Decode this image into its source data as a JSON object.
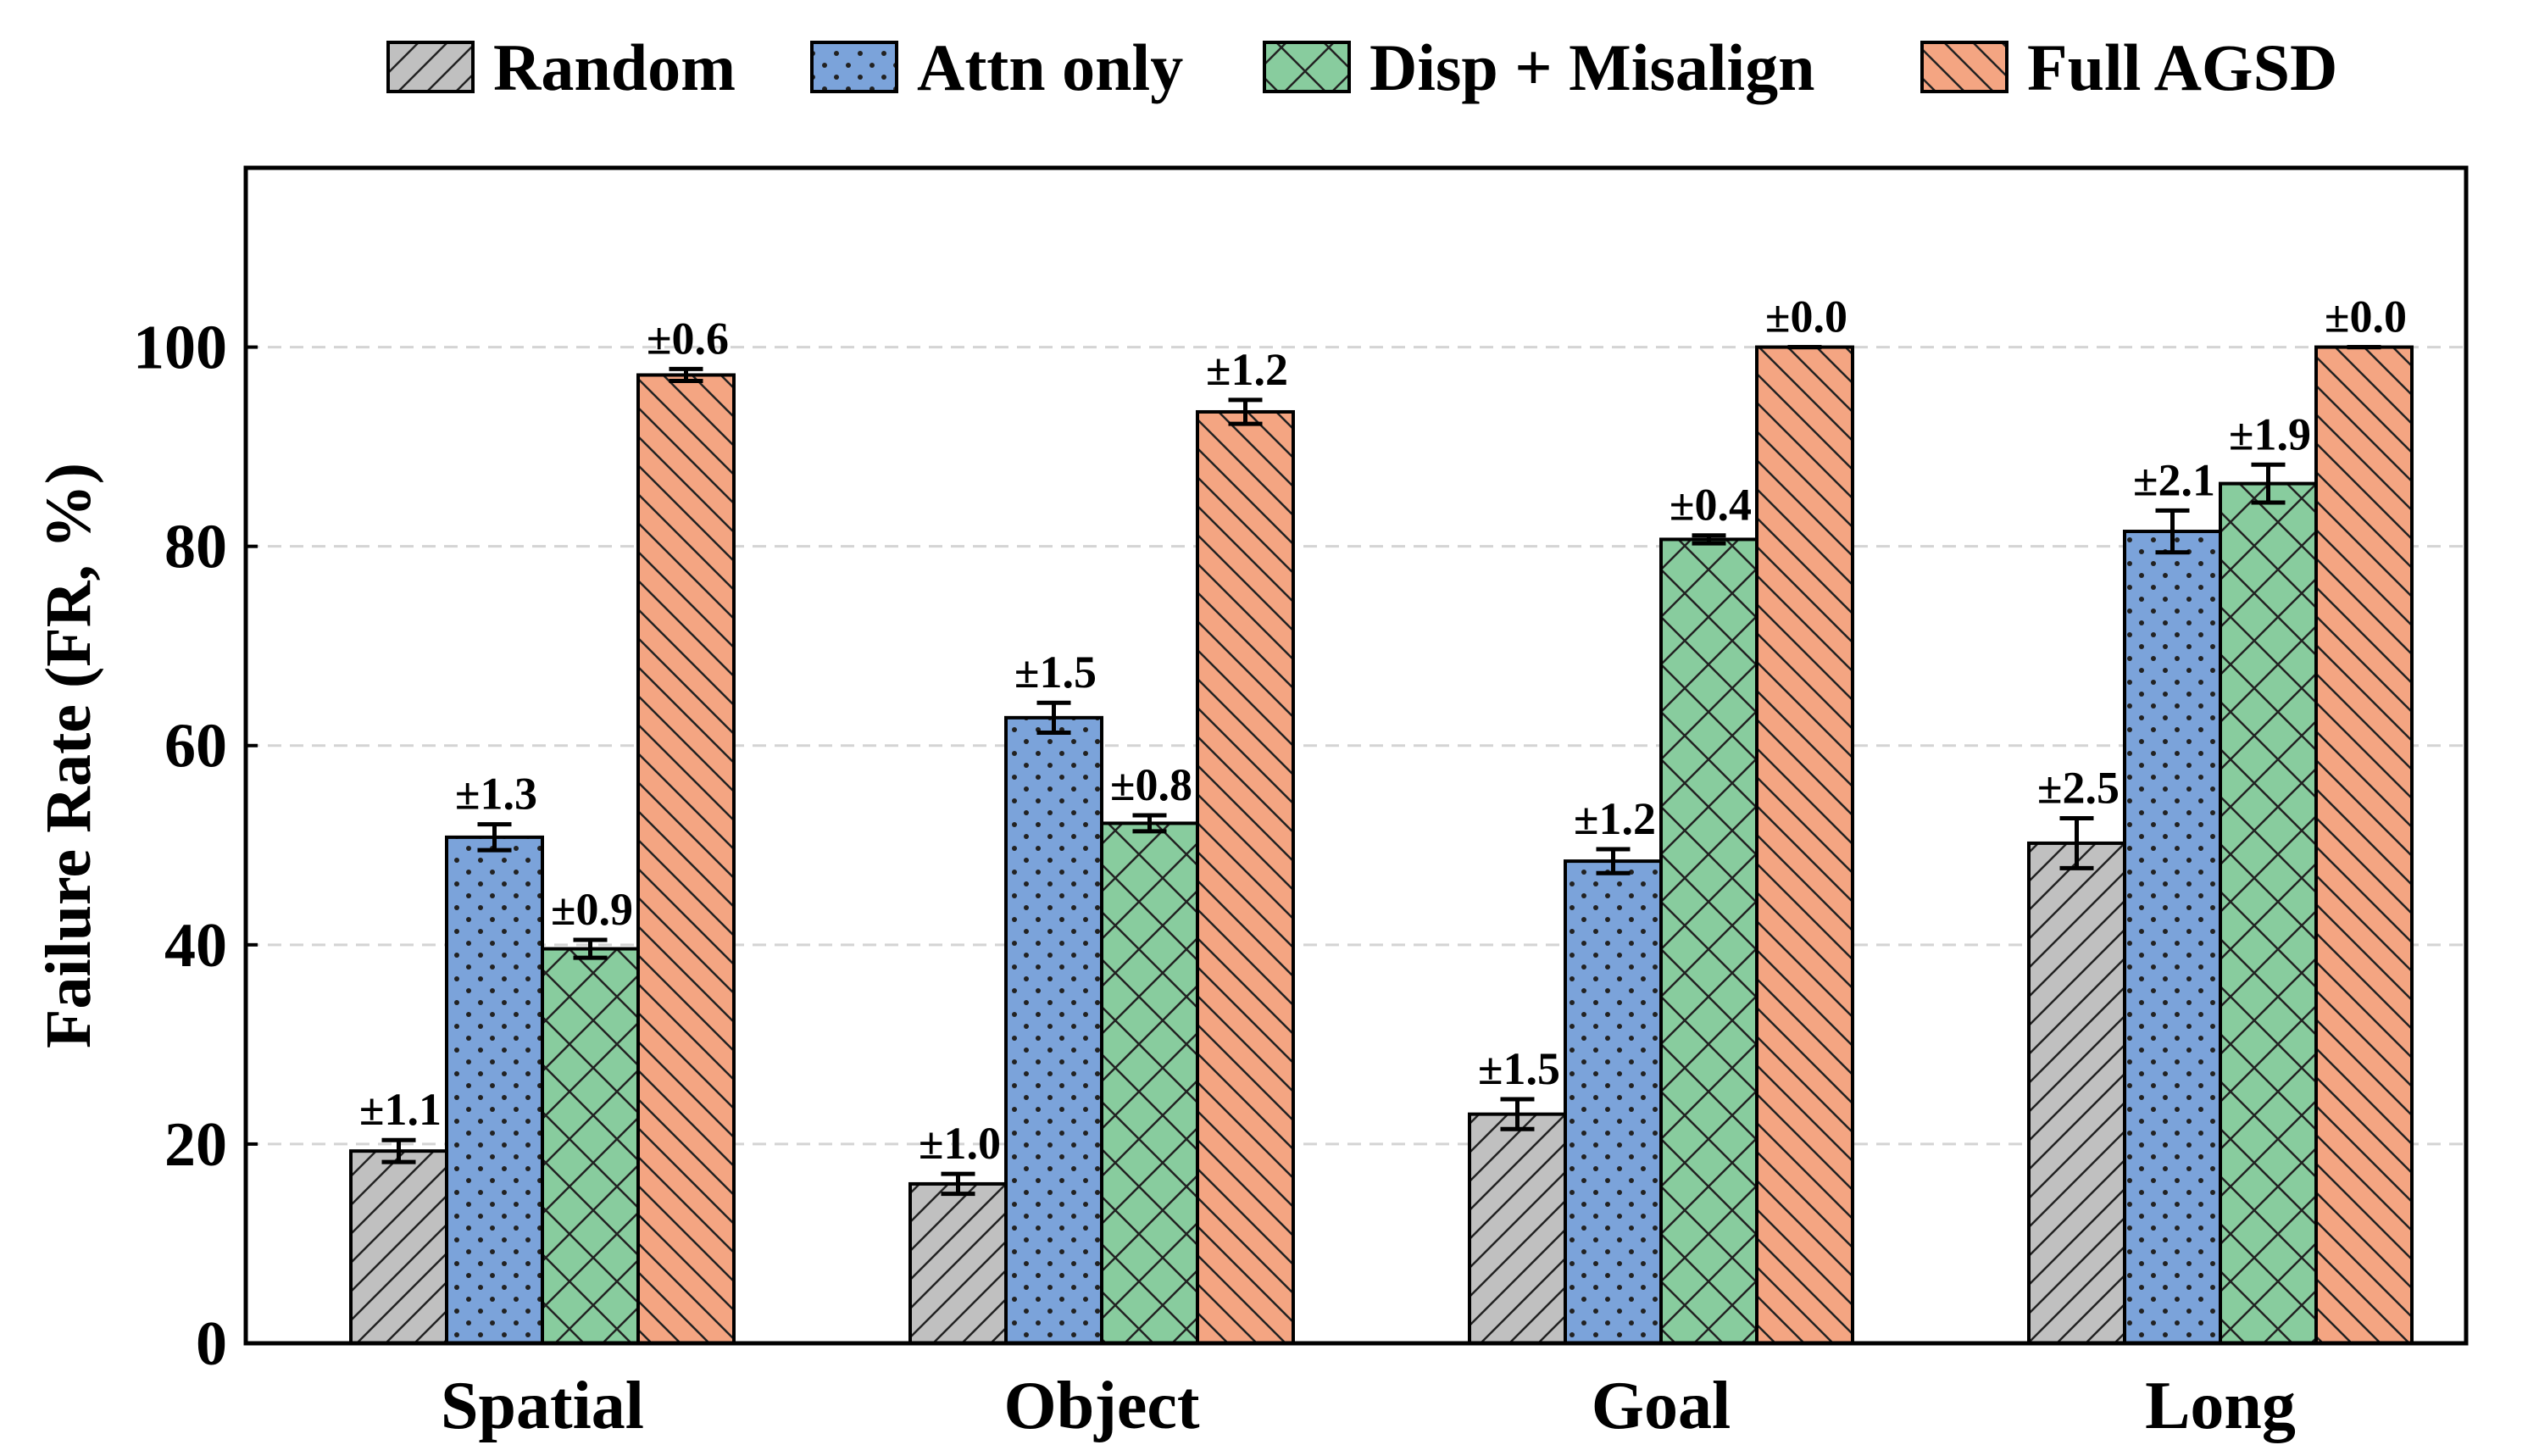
{
  "chart_data": {
    "type": "bar",
    "title": "",
    "xlabel": "",
    "ylabel": "Failure Rate (FR, %)",
    "ylim": [
      0,
      118
    ],
    "yticks": [
      0,
      20,
      40,
      60,
      80,
      100
    ],
    "grid": "horizontal-dashed",
    "legend_position": "top",
    "categories": [
      "Spatial",
      "Object",
      "Goal",
      "Long"
    ],
    "series": [
      {
        "name": "Random",
        "color": "#c0c0c0",
        "pattern": "diagonal-forward",
        "values": [
          19.3,
          16.0,
          23.0,
          50.2
        ],
        "errors": [
          1.1,
          1.0,
          1.5,
          2.5
        ],
        "error_labels": [
          "±1.1",
          "±1.0",
          "±1.5",
          "±2.5"
        ]
      },
      {
        "name": "Attn only",
        "color": "#7ba3da",
        "pattern": "dots",
        "values": [
          50.8,
          62.8,
          48.4,
          81.5
        ],
        "errors": [
          1.3,
          1.5,
          1.2,
          2.1
        ],
        "error_labels": [
          "±1.3",
          "±1.5",
          "±1.2",
          "±2.1"
        ]
      },
      {
        "name": "Disp + Misalign",
        "color": "#88cc9e",
        "pattern": "crosshatch",
        "values": [
          39.6,
          52.2,
          80.7,
          86.3
        ],
        "errors": [
          0.9,
          0.8,
          0.4,
          1.9
        ],
        "error_labels": [
          "±0.9",
          "±0.8",
          "±0.4",
          "±1.9"
        ]
      },
      {
        "name": "Full AGSD",
        "color": "#f4a582",
        "pattern": "diagonal-back",
        "values": [
          97.2,
          93.5,
          100.0,
          100.0
        ],
        "errors": [
          0.6,
          1.2,
          0.0,
          0.0
        ],
        "error_labels": [
          "±0.6",
          "±1.2",
          "±0.0",
          "±0.0"
        ]
      }
    ]
  }
}
